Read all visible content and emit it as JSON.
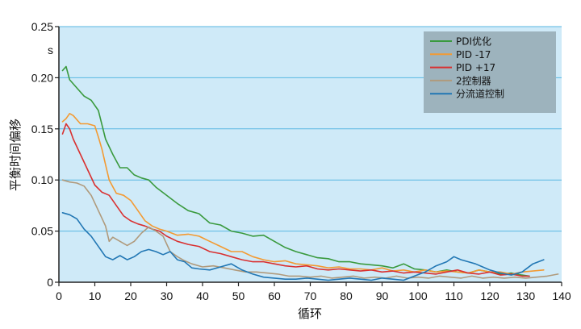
{
  "chart_data": {
    "type": "line",
    "title": "",
    "xlabel": "循环",
    "ylabel": "平衡时间偏移",
    "yunit": "s",
    "xlim": [
      0,
      140
    ],
    "ylim": [
      0,
      0.25
    ],
    "xticks": [
      "0",
      "10",
      "20",
      "30",
      "40",
      "50",
      "60",
      "70",
      "80",
      "90",
      "100",
      "110",
      "120",
      "130",
      "140"
    ],
    "yticks": [
      "0",
      "0.05",
      "0.10",
      "0.15",
      "0.20",
      "0.25"
    ],
    "grid": "horizontal",
    "legend_position": "top-right",
    "colors": {
      "plot_bg": "#cfeaf8",
      "grid": "#5ab7e2",
      "legend_bg": "#9db3bd"
    },
    "series": [
      {
        "name": "PDI优化",
        "color": "#3a9a3e",
        "x": [
          1,
          2,
          3,
          5,
          7,
          9,
          11,
          13,
          15,
          17,
          19,
          21,
          23,
          25,
          27,
          30,
          33,
          36,
          39,
          42,
          45,
          48,
          51,
          54,
          57,
          60,
          63,
          66,
          69,
          72,
          75,
          78,
          81,
          84,
          87,
          90,
          93,
          96,
          99,
          102,
          105,
          108,
          111,
          114,
          117,
          120,
          123,
          126,
          129,
          131
        ],
        "y": [
          0.207,
          0.211,
          0.198,
          0.19,
          0.182,
          0.178,
          0.168,
          0.14,
          0.125,
          0.112,
          0.112,
          0.105,
          0.102,
          0.1,
          0.093,
          0.085,
          0.077,
          0.07,
          0.067,
          0.058,
          0.056,
          0.05,
          0.048,
          0.045,
          0.046,
          0.04,
          0.034,
          0.03,
          0.027,
          0.024,
          0.023,
          0.02,
          0.02,
          0.018,
          0.017,
          0.016,
          0.014,
          0.018,
          0.013,
          0.012,
          0.01,
          0.012,
          0.01,
          0.009,
          0.012,
          0.01,
          0.008,
          0.009,
          0.007,
          0.006
        ]
      },
      {
        "name": "PID -17",
        "color": "#f39a32",
        "x": [
          1,
          2,
          3,
          4,
          6,
          8,
          10,
          11,
          12,
          13,
          14,
          16,
          18,
          20,
          22,
          24,
          26,
          28,
          30,
          33,
          36,
          39,
          42,
          45,
          48,
          51,
          54,
          57,
          60,
          63,
          66,
          69,
          72,
          75,
          78,
          81,
          84,
          87,
          90,
          93,
          96,
          99,
          102,
          105,
          108,
          111,
          114,
          117,
          120,
          123,
          126,
          129,
          132,
          135
        ],
        "y": [
          0.157,
          0.16,
          0.165,
          0.163,
          0.155,
          0.155,
          0.153,
          0.142,
          0.13,
          0.115,
          0.1,
          0.087,
          0.085,
          0.08,
          0.07,
          0.06,
          0.055,
          0.052,
          0.05,
          0.046,
          0.047,
          0.045,
          0.04,
          0.035,
          0.03,
          0.03,
          0.025,
          0.022,
          0.02,
          0.021,
          0.018,
          0.017,
          0.016,
          0.014,
          0.015,
          0.013,
          0.013,
          0.012,
          0.014,
          0.011,
          0.012,
          0.01,
          0.012,
          0.01,
          0.011,
          0.01,
          0.009,
          0.012,
          0.01,
          0.01,
          0.008,
          0.01,
          0.011,
          0.012
        ]
      },
      {
        "name": "PID +17",
        "color": "#d93030",
        "x": [
          1,
          2,
          3,
          4,
          6,
          8,
          10,
          12,
          14,
          16,
          18,
          20,
          22,
          24,
          26,
          28,
          30,
          33,
          36,
          39,
          42,
          45,
          48,
          51,
          54,
          57,
          60,
          63,
          66,
          69,
          72,
          75,
          78,
          81,
          84,
          87,
          90,
          93,
          96,
          99,
          102,
          105,
          108,
          111,
          114,
          117,
          120,
          123,
          126,
          129,
          131
        ],
        "y": [
          0.145,
          0.155,
          0.15,
          0.14,
          0.125,
          0.11,
          0.095,
          0.088,
          0.085,
          0.075,
          0.065,
          0.06,
          0.057,
          0.055,
          0.052,
          0.05,
          0.045,
          0.04,
          0.037,
          0.035,
          0.03,
          0.028,
          0.025,
          0.022,
          0.02,
          0.02,
          0.018,
          0.016,
          0.015,
          0.016,
          0.013,
          0.012,
          0.013,
          0.012,
          0.011,
          0.012,
          0.01,
          0.011,
          0.009,
          0.01,
          0.009,
          0.008,
          0.01,
          0.012,
          0.009,
          0.008,
          0.01,
          0.007,
          0.008,
          0.006,
          0.006
        ]
      },
      {
        "name": "2控制器",
        "color": "#b09a7c",
        "x": [
          1,
          3,
          5,
          7,
          9,
          11,
          13,
          14,
          15,
          17,
          19,
          21,
          23,
          25,
          27,
          29,
          31,
          33,
          35,
          37,
          40,
          43,
          46,
          49,
          52,
          55,
          58,
          61,
          64,
          67,
          70,
          73,
          76,
          79,
          82,
          85,
          88,
          91,
          94,
          97,
          100,
          103,
          106,
          109,
          112,
          115,
          118,
          121,
          124,
          127,
          130,
          133,
          136,
          139
        ],
        "y": [
          0.1,
          0.098,
          0.097,
          0.094,
          0.085,
          0.07,
          0.055,
          0.04,
          0.044,
          0.04,
          0.036,
          0.04,
          0.048,
          0.054,
          0.05,
          0.045,
          0.03,
          0.025,
          0.021,
          0.018,
          0.015,
          0.016,
          0.014,
          0.012,
          0.01,
          0.01,
          0.009,
          0.008,
          0.006,
          0.006,
          0.005,
          0.006,
          0.004,
          0.005,
          0.006,
          0.004,
          0.005,
          0.004,
          0.006,
          0.004,
          0.005,
          0.004,
          0.006,
          0.005,
          0.004,
          0.006,
          0.004,
          0.005,
          0.004,
          0.005,
          0.004,
          0.005,
          0.006,
          0.008
        ]
      },
      {
        "name": "分流道控制",
        "color": "#2277b4",
        "x": [
          1,
          3,
          5,
          7,
          9,
          11,
          13,
          15,
          17,
          19,
          21,
          23,
          25,
          27,
          29,
          31,
          33,
          35,
          37,
          39,
          42,
          45,
          48,
          51,
          54,
          57,
          60,
          63,
          66,
          69,
          72,
          75,
          78,
          81,
          84,
          87,
          90,
          93,
          96,
          99,
          102,
          105,
          108,
          110,
          112,
          114,
          116,
          118,
          120,
          123,
          126,
          129,
          132,
          135
        ],
        "y": [
          0.068,
          0.066,
          0.062,
          0.052,
          0.045,
          0.035,
          0.025,
          0.022,
          0.026,
          0.022,
          0.025,
          0.03,
          0.032,
          0.03,
          0.027,
          0.03,
          0.022,
          0.02,
          0.014,
          0.013,
          0.012,
          0.015,
          0.018,
          0.012,
          0.008,
          0.005,
          0.004,
          0.003,
          0.003,
          0.004,
          0.003,
          0.002,
          0.003,
          0.004,
          0.003,
          0.002,
          0.004,
          0.003,
          0.002,
          0.006,
          0.01,
          0.016,
          0.02,
          0.025,
          0.022,
          0.02,
          0.018,
          0.015,
          0.012,
          0.009,
          0.007,
          0.01,
          0.018,
          0.022
        ]
      }
    ]
  }
}
